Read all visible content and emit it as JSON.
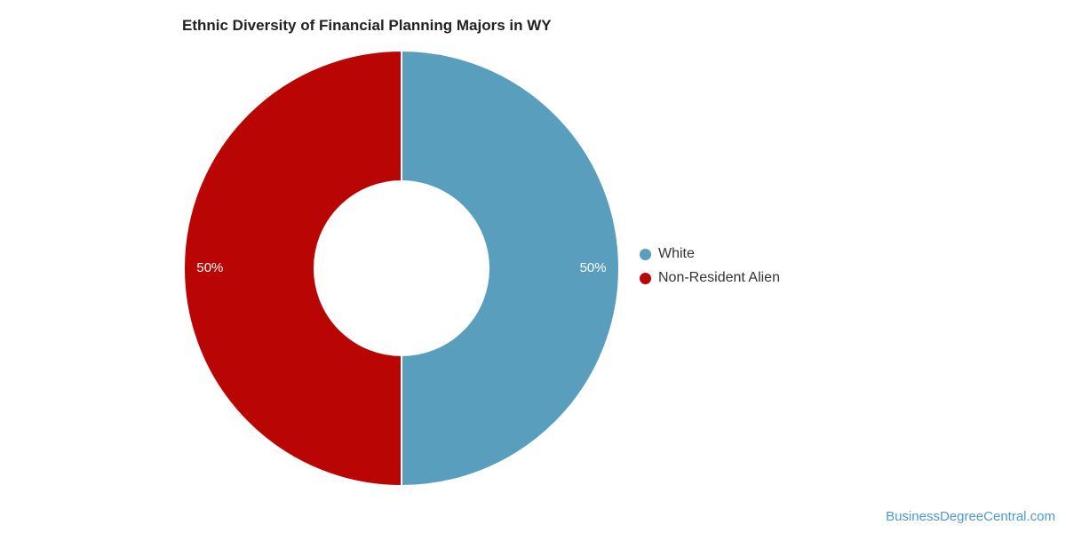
{
  "chart_data": {
    "type": "pie",
    "subtype": "donut",
    "title": "Ethnic Diversity of Financial Planning Majors in WY",
    "segments": [
      {
        "label": "White",
        "value": 50,
        "display": "50%",
        "color": "#5A9EBE"
      },
      {
        "label": "Non-Resident Alien",
        "value": 50,
        "display": "50%",
        "color": "#B90504"
      }
    ],
    "start_angle_deg": 0,
    "inner_radius_ratio": 0.4,
    "label_radius_ratio": 0.88,
    "label_color": "#FFFFFF",
    "slice_border_color": "#FFFFFF",
    "legend_position": "right",
    "background": "#FFFFFF"
  },
  "watermark": {
    "text": "BusinessDegreeCentral.com",
    "color": "#4D9BCB"
  }
}
